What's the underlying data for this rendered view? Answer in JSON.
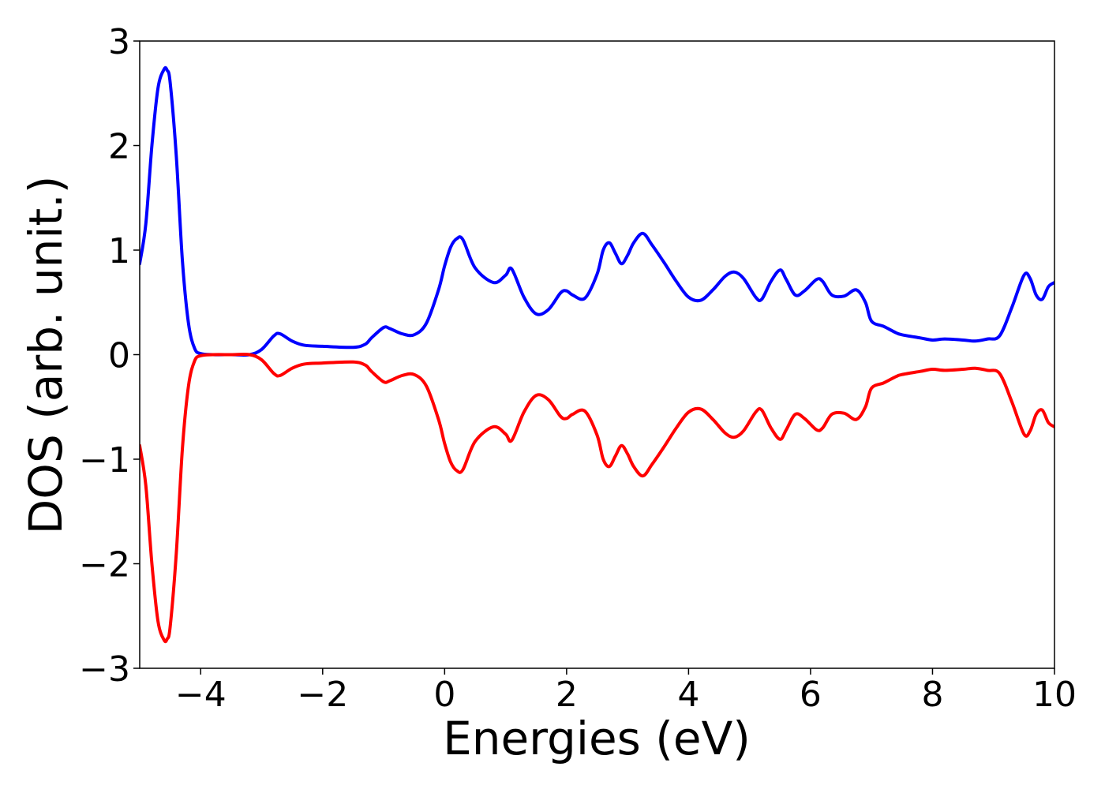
{
  "chart_data": {
    "type": "line",
    "title": "",
    "xlabel": "Energies (eV)",
    "ylabel": "DOS (arb. unit.)",
    "xlim": [
      -5,
      10
    ],
    "ylim": [
      -3,
      3
    ],
    "grid": false,
    "legend": "none",
    "xticks": [
      -4,
      -2,
      0,
      2,
      4,
      6,
      8,
      10
    ],
    "xtick_labels": [
      "−4",
      "−2",
      "0",
      "2",
      "4",
      "6",
      "8",
      "10"
    ],
    "yticks": [
      -3,
      -2,
      -1,
      0,
      1,
      2,
      3
    ],
    "ytick_labels": [
      "−3",
      "−2",
      "−1",
      "0",
      "1",
      "2",
      "3"
    ],
    "series": [
      {
        "color": "#0000ff",
        "x": [
          -5.0,
          -4.9,
          -4.8,
          -4.7,
          -4.6,
          -4.55,
          -4.5,
          -4.4,
          -4.3,
          -4.2,
          -4.1,
          -4.0,
          -3.8,
          -3.5,
          -3.2,
          -3.0,
          -2.8,
          -2.7,
          -2.5,
          -2.3,
          -2.0,
          -1.5,
          -1.3,
          -1.2,
          -1.0,
          -0.9,
          -0.7,
          -0.5,
          -0.3,
          -0.1,
          0.0,
          0.1,
          0.2,
          0.3,
          0.5,
          0.8,
          1.0,
          1.1,
          1.3,
          1.5,
          1.7,
          1.9,
          2.0,
          2.1,
          2.3,
          2.5,
          2.6,
          2.7,
          2.8,
          2.9,
          3.0,
          3.1,
          3.25,
          3.4,
          3.6,
          3.8,
          4.0,
          4.2,
          4.4,
          4.6,
          4.75,
          4.9,
          5.1,
          5.2,
          5.35,
          5.5,
          5.6,
          5.75,
          5.9,
          6.1,
          6.2,
          6.35,
          6.55,
          6.75,
          6.9,
          7.0,
          7.2,
          7.4,
          7.5,
          7.8,
          8.0,
          8.2,
          8.5,
          8.7,
          8.9,
          9.1,
          9.3,
          9.5,
          9.6,
          9.7,
          9.8,
          9.9,
          10.0
        ],
        "y": [
          0.87,
          1.25,
          2.0,
          2.55,
          2.73,
          2.72,
          2.6,
          1.9,
          0.9,
          0.3,
          0.06,
          0.01,
          0.0,
          0.0,
          0.0,
          0.05,
          0.18,
          0.2,
          0.13,
          0.09,
          0.08,
          0.07,
          0.1,
          0.16,
          0.26,
          0.25,
          0.2,
          0.19,
          0.3,
          0.62,
          0.85,
          1.03,
          1.11,
          1.1,
          0.83,
          0.69,
          0.76,
          0.82,
          0.55,
          0.39,
          0.43,
          0.59,
          0.61,
          0.57,
          0.54,
          0.77,
          1.0,
          1.07,
          0.97,
          0.87,
          0.95,
          1.07,
          1.16,
          1.05,
          0.88,
          0.7,
          0.55,
          0.52,
          0.62,
          0.75,
          0.79,
          0.73,
          0.55,
          0.53,
          0.7,
          0.81,
          0.72,
          0.57,
          0.61,
          0.72,
          0.7,
          0.57,
          0.56,
          0.62,
          0.5,
          0.32,
          0.27,
          0.21,
          0.19,
          0.16,
          0.14,
          0.15,
          0.14,
          0.13,
          0.15,
          0.18,
          0.45,
          0.76,
          0.73,
          0.57,
          0.53,
          0.65,
          0.69
        ]
      },
      {
        "color": "#ff0000",
        "x": [
          -5.0,
          -4.9,
          -4.8,
          -4.7,
          -4.6,
          -4.55,
          -4.5,
          -4.4,
          -4.3,
          -4.2,
          -4.1,
          -4.0,
          -3.8,
          -3.5,
          -3.2,
          -3.0,
          -2.8,
          -2.7,
          -2.5,
          -2.3,
          -2.0,
          -1.5,
          -1.3,
          -1.2,
          -1.0,
          -0.9,
          -0.7,
          -0.5,
          -0.3,
          -0.1,
          0.0,
          0.1,
          0.2,
          0.3,
          0.5,
          0.8,
          1.0,
          1.1,
          1.3,
          1.5,
          1.7,
          1.9,
          2.0,
          2.1,
          2.3,
          2.5,
          2.6,
          2.7,
          2.8,
          2.9,
          3.0,
          3.1,
          3.25,
          3.4,
          3.6,
          3.8,
          4.0,
          4.2,
          4.4,
          4.6,
          4.75,
          4.9,
          5.1,
          5.2,
          5.35,
          5.5,
          5.6,
          5.75,
          5.9,
          6.1,
          6.2,
          6.35,
          6.55,
          6.75,
          6.9,
          7.0,
          7.2,
          7.4,
          7.5,
          7.8,
          8.0,
          8.2,
          8.5,
          8.7,
          8.9,
          9.1,
          9.3,
          9.5,
          9.6,
          9.7,
          9.8,
          9.9,
          10.0
        ],
        "y": [
          -0.87,
          -1.25,
          -2.0,
          -2.55,
          -2.73,
          -2.72,
          -2.6,
          -1.9,
          -0.9,
          -0.3,
          -0.06,
          -0.01,
          0.0,
          0.0,
          0.0,
          -0.05,
          -0.18,
          -0.2,
          -0.13,
          -0.09,
          -0.08,
          -0.07,
          -0.1,
          -0.16,
          -0.26,
          -0.25,
          -0.2,
          -0.19,
          -0.3,
          -0.62,
          -0.85,
          -1.03,
          -1.11,
          -1.1,
          -0.83,
          -0.69,
          -0.76,
          -0.82,
          -0.55,
          -0.39,
          -0.43,
          -0.59,
          -0.61,
          -0.57,
          -0.54,
          -0.77,
          -1.0,
          -1.07,
          -0.97,
          -0.87,
          -0.95,
          -1.07,
          -1.16,
          -1.05,
          -0.88,
          -0.7,
          -0.55,
          -0.52,
          -0.62,
          -0.75,
          -0.79,
          -0.73,
          -0.55,
          -0.53,
          -0.7,
          -0.81,
          -0.72,
          -0.57,
          -0.61,
          -0.72,
          -0.7,
          -0.57,
          -0.56,
          -0.62,
          -0.5,
          -0.32,
          -0.27,
          -0.21,
          -0.19,
          -0.16,
          -0.14,
          -0.15,
          -0.14,
          -0.13,
          -0.15,
          -0.18,
          -0.45,
          -0.76,
          -0.73,
          -0.57,
          -0.53,
          -0.65,
          -0.69
        ]
      }
    ]
  }
}
